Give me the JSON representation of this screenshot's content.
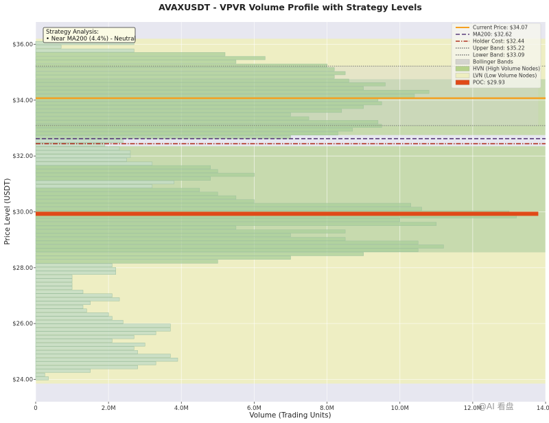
{
  "chart_data": {
    "type": "bar",
    "orientation": "horizontal",
    "title": "AVAXUSDT - VPVR Volume Profile with Strategy Levels",
    "xlabel": "Volume (Trading Units)",
    "ylabel": "Price Level (USDT)",
    "xlim": [
      0,
      14000000
    ],
    "ylim": [
      23.2,
      36.8
    ],
    "grid": true,
    "legend_position": "top-right",
    "x_ticks": [
      {
        "v": 0,
        "label": "0"
      },
      {
        "v": 2000000,
        "label": "2.0M"
      },
      {
        "v": 4000000,
        "label": "4.0M"
      },
      {
        "v": 6000000,
        "label": "6.0M"
      },
      {
        "v": 8000000,
        "label": "8.0M"
      },
      {
        "v": 10000000,
        "label": "10.0M"
      },
      {
        "v": 12000000,
        "label": "12.0M"
      },
      {
        "v": 14000000,
        "label": "14.0M"
      }
    ],
    "y_ticks": [
      {
        "v": 24,
        "label": "$24.00"
      },
      {
        "v": 26,
        "label": "$26.00"
      },
      {
        "v": 28,
        "label": "$28.00"
      },
      {
        "v": 30,
        "label": "$30.00"
      },
      {
        "v": 32,
        "label": "$32.00"
      },
      {
        "v": 34,
        "label": "$34.00"
      },
      {
        "v": 36,
        "label": "$36.00"
      }
    ],
    "bin_height": 0.135,
    "price_levels": [
      24.03,
      24.16,
      24.3,
      24.43,
      24.57,
      24.7,
      24.84,
      24.97,
      25.11,
      25.24,
      25.38,
      25.51,
      25.65,
      25.78,
      25.92,
      26.05,
      26.19,
      26.32,
      26.46,
      26.59,
      26.73,
      26.86,
      27.0,
      27.13,
      27.27,
      27.4,
      27.54,
      27.67,
      27.81,
      27.94,
      28.08,
      28.21,
      28.35,
      28.48,
      28.62,
      28.75,
      28.89,
      29.02,
      29.16,
      29.29,
      29.43,
      29.56,
      29.7,
      29.83,
      29.97,
      30.1,
      30.24,
      30.37,
      30.51,
      30.64,
      30.78,
      30.91,
      31.05,
      31.18,
      31.32,
      31.45,
      31.59,
      31.72,
      31.86,
      31.99,
      32.13,
      32.26,
      32.4,
      32.53,
      32.67,
      32.8,
      32.94,
      33.07,
      33.21,
      33.34,
      33.48,
      33.61,
      33.75,
      33.88,
      34.02,
      34.15,
      34.29,
      34.42,
      34.56,
      34.69,
      34.83,
      34.96,
      35.1,
      35.23,
      35.37,
      35.5,
      35.64,
      35.77,
      35.91,
      36.04
    ],
    "volumes": [
      350000,
      250000,
      1500000,
      2800000,
      3300000,
      3900000,
      3700000,
      2800000,
      2700000,
      3000000,
      2100000,
      2700000,
      3300000,
      3700000,
      3700000,
      2400000,
      2100000,
      2000000,
      1400000,
      1300000,
      1500000,
      2300000,
      2100000,
      1300000,
      1000000,
      1000000,
      1000000,
      1000000,
      2200000,
      2200000,
      2100000,
      5000000,
      7000000,
      9000000,
      10500000,
      11200000,
      10500000,
      8500000,
      7000000,
      8500000,
      5500000,
      11000000,
      10000000,
      13200000,
      13000000,
      10600000,
      10300000,
      6000000,
      5500000,
      5000000,
      4500000,
      3200000,
      3800000,
      4800000,
      6000000,
      5000000,
      4800000,
      3200000,
      2500000,
      2600000,
      2600000,
      2300000,
      1900000,
      2400000,
      7000000,
      8300000,
      8700000,
      9500000,
      9400000,
      7500000,
      7000000,
      8400000,
      9000000,
      9500000,
      9400000,
      10400000,
      10800000,
      9000000,
      9600000,
      8600000,
      8200000,
      8500000,
      8200000,
      8000000,
      5500000,
      6300000,
      5200000,
      2700000,
      700000,
      2700000
    ],
    "hvn_threshold": 4000000,
    "series_colors": {
      "bar": "#c4dcc6",
      "bar_edge": "#9dbf9f",
      "hvn_band": "#b6d28a",
      "lvn_band": "#eeeec0",
      "bollinger": "#d4d4ce",
      "current_price": "#f5a020",
      "ma200": "#5a3d7a",
      "holder_cost": "#b03020",
      "band_line": "#777777",
      "poc": "#e04a18",
      "frame_bg": "#e7e7f0"
    },
    "levels": {
      "current_price": 34.07,
      "ma200": 32.62,
      "holder_cost": 32.44,
      "upper_band": 35.22,
      "lower_band": 33.09,
      "poc": 29.93
    },
    "hvn_zones": [
      [
        28.55,
        32.35
      ],
      [
        32.75,
        34.75
      ]
    ],
    "lvn_zones": [
      [
        23.85,
        28.55
      ],
      [
        34.75,
        36.2
      ]
    ],
    "bollinger_zone": [
      33.09,
      35.22
    ],
    "poc_end_volume": 13800000,
    "legend": [
      {
        "key": "current",
        "label": "Current Price: $34.07",
        "style": "line",
        "color": "#f5a020",
        "dash": ""
      },
      {
        "key": "ma200",
        "label": "MA200: $32.62",
        "style": "line",
        "color": "#5a3d7a",
        "dash": "6,3"
      },
      {
        "key": "holder",
        "label": "Holder Cost: $32.44",
        "style": "line",
        "color": "#b03020",
        "dash": "6,2,1.5,2"
      },
      {
        "key": "upper",
        "label": "Upper Band: $35.22",
        "style": "line",
        "color": "#777777",
        "dash": "1.5,1.5"
      },
      {
        "key": "lower",
        "label": "Lower Band: $33.09",
        "style": "line",
        "color": "#777777",
        "dash": "1.5,1.5"
      },
      {
        "key": "boll",
        "label": "Bollinger Bands",
        "style": "patch",
        "color": "#d4d4ce",
        "dash": ""
      },
      {
        "key": "hvn",
        "label": "HVN (High Volume Nodes)",
        "style": "patch",
        "color": "#b6d28a",
        "dash": ""
      },
      {
        "key": "lvn",
        "label": "LVN (Low Volume Nodes)",
        "style": "patch",
        "color": "#eeeec0",
        "dash": ""
      },
      {
        "key": "poc",
        "label": "POC: $29.93",
        "style": "patch",
        "color": "#e04a18",
        "dash": ""
      }
    ],
    "annotation": {
      "title": "Strategy Analysis:",
      "text": "• Near MA200 (4.4%) - Neutral"
    }
  },
  "watermark": "@AI 看盘"
}
